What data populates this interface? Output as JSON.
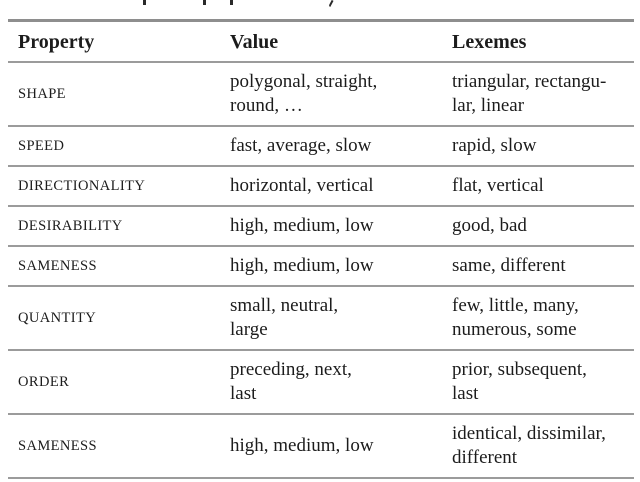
{
  "table": {
    "headers": [
      "Property",
      "Value",
      "Lexemes"
    ],
    "rows": [
      {
        "property": "SHAPE",
        "value": "polygonal, straight,\nround, …",
        "lexemes": "triangular, rectangu-\nlar, linear"
      },
      {
        "property": "SPEED",
        "value": "fast, average, slow",
        "lexemes": "rapid, slow"
      },
      {
        "property": "DIRECTIONALITY",
        "value": "horizontal, vertical",
        "lexemes": "flat, vertical"
      },
      {
        "property": "DESIRABILITY",
        "value": "high, medium, low",
        "lexemes": "good, bad"
      },
      {
        "property": "SAMENESS",
        "value": "high, medium, low",
        "lexemes": "same, different"
      },
      {
        "property": "QUANTITY",
        "value": "small, neutral,\nlarge",
        "lexemes": "few, little, many,\nnumerous, some"
      },
      {
        "property": "ORDER",
        "value": "preceding, next,\nlast",
        "lexemes": "prior, subsequent,\nlast"
      },
      {
        "property": "SAMENESS",
        "value": "high, medium, low",
        "lexemes": "identical, dissimilar,\ndifferent"
      }
    ],
    "rule_color": "#9b9b9b",
    "text_color": "#1c1c1c"
  }
}
